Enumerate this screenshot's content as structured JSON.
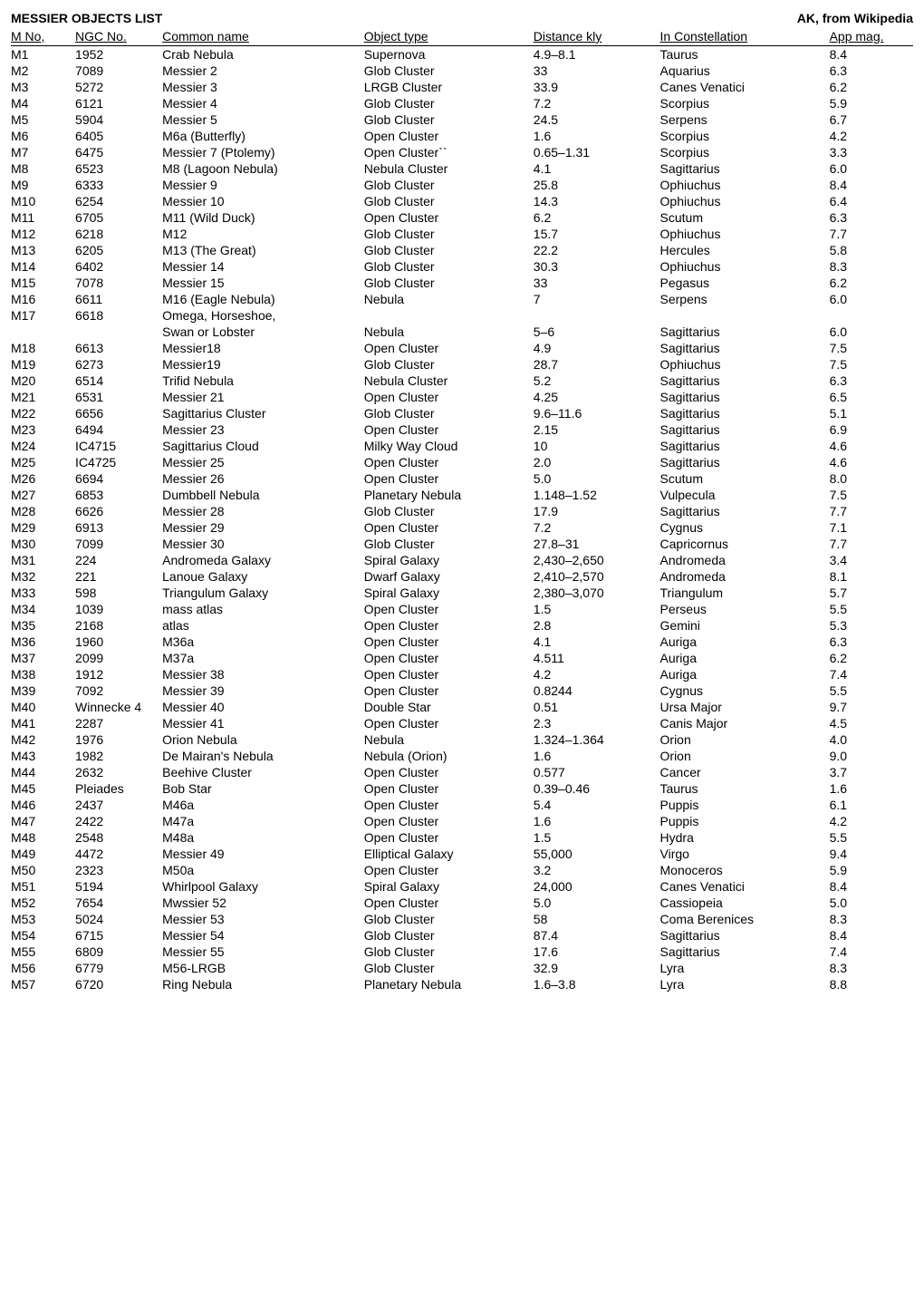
{
  "title_left": "MESSIER OBJECTS LIST",
  "title_right": "AK, from Wikipedia",
  "columns": [
    "M No,",
    "NGC No.",
    "Common name",
    "Object type",
    "Distance kly",
    "In Constellation",
    "App mag."
  ],
  "rows": [
    [
      "M1",
      "1952",
      "Crab Nebula",
      "Supernova",
      "4.9–8.1",
      "Taurus",
      "8.4"
    ],
    [
      "M2",
      "7089",
      "Messier 2",
      "Glob Cluster",
      "33",
      "Aquarius",
      "6.3"
    ],
    [
      "M3",
      "5272",
      "Messier 3",
      "LRGB Cluster",
      "33.9",
      "Canes Venatici",
      "6.2"
    ],
    [
      "M4",
      "6121",
      "Messier 4",
      "Glob Cluster",
      "7.2",
      "Scorpius",
      "5.9"
    ],
    [
      "M5",
      "5904",
      "Messier 5",
      "Glob Cluster",
      "24.5",
      "Serpens",
      "6.7"
    ],
    [
      "M6",
      "6405",
      "M6a (Butterfly)",
      "Open Cluster",
      "1.6",
      "Scorpius",
      "4.2"
    ],
    [
      "M7",
      "6475",
      "Messier 7 (Ptolemy)",
      "Open Cluster``",
      "0.65–1.31",
      "Scorpius",
      "3.3"
    ],
    [
      "M8",
      "6523",
      "M8 (Lagoon Nebula)",
      "Nebula Cluster",
      "4.1",
      "Sagittarius",
      "6.0"
    ],
    [
      "M9",
      "6333",
      "Messier 9",
      "Glob Cluster",
      "25.8",
      "Ophiuchus",
      "8.4"
    ],
    [
      "M10",
      "6254",
      "Messier 10",
      "Glob Cluster",
      "14.3",
      "Ophiuchus",
      "6.4"
    ],
    [
      "M11",
      "6705",
      "M11  (Wild Duck)",
      "Open Cluster",
      "6.2",
      "Scutum",
      "6.3"
    ],
    [
      "M12",
      "6218",
      "M12",
      "Glob Cluster",
      "15.7",
      "Ophiuchus",
      "7.7"
    ],
    [
      "M13",
      "6205",
      "M13 (The Great)",
      "Glob Cluster",
      "22.2",
      "Hercules",
      "5.8"
    ],
    [
      "M14",
      "6402",
      "Messier 14",
      "Glob Cluster",
      "30.3",
      "Ophiuchus",
      "8.3"
    ],
    [
      "M15",
      "7078",
      "Messier 15",
      "Glob Cluster",
      "33",
      "Pegasus",
      "6.2"
    ],
    [
      "M16",
      "6611",
      "M16 (Eagle Nebula)",
      "Nebula",
      "7",
      "Serpens",
      "6.0"
    ],
    [
      "M17",
      "6618",
      "Omega, Horseshoe,",
      "",
      "",
      "",
      ""
    ],
    [
      "",
      "",
      "Swan or Lobster",
      "Nebula",
      "5–6",
      "Sagittarius",
      "6.0"
    ],
    [
      "M18",
      "6613",
      "Messier18",
      "Open Cluster",
      "4.9",
      "Sagittarius",
      "7.5"
    ],
    [
      "M19",
      "6273",
      "Messier19",
      "Glob Cluster",
      "28.7",
      "Ophiuchus",
      "7.5"
    ],
    [
      "M20",
      "6514",
      "Trifid Nebula",
      "Nebula Cluster",
      "5.2",
      "Sagittarius",
      "6.3"
    ],
    [
      "M21",
      "6531",
      "Messier 21",
      "Open Cluster",
      "4.25",
      "Sagittarius",
      "6.5"
    ],
    [
      "M22",
      "6656",
      "Sagittarius Cluster",
      "Glob Cluster",
      "9.6–11.6",
      "Sagittarius",
      "5.1"
    ],
    [
      "M23",
      "6494",
      "Messier 23",
      "Open Cluster",
      "2.15",
      "Sagittarius",
      "6.9"
    ],
    [
      "M24",
      "IC4715",
      "Sagittarius Cloud",
      "Milky Way Cloud",
      "10",
      "Sagittarius",
      "4.6"
    ],
    [
      "M25",
      "IC4725",
      "Messier 25",
      "Open Cluster",
      "2.0",
      "Sagittarius",
      "4.6"
    ],
    [
      "M26",
      "6694",
      "Messier 26",
      "Open Cluster",
      "5.0",
      "Scutum",
      "8.0"
    ],
    [
      "M27",
      "6853",
      "Dumbbell Nebula",
      "Planetary Nebula",
      "1.148–1.52",
      "Vulpecula",
      "7.5"
    ],
    [
      "M28",
      "6626",
      "Messier 28",
      "Glob Cluster",
      "17.9",
      "Sagittarius",
      "7.7"
    ],
    [
      "M29",
      "6913",
      "Messier 29",
      "Open Cluster",
      "7.2",
      "Cygnus",
      "7.1"
    ],
    [
      "M30",
      "7099",
      "Messier 30",
      "Glob Cluster",
      "27.8–31",
      "Capricornus",
      "7.7"
    ],
    [
      "M31",
      "224",
      "Andromeda Galaxy",
      "Spiral Galaxy",
      "2,430–2,650",
      "Andromeda",
      "3.4"
    ],
    [
      "M32",
      "221",
      "Lanoue Galaxy",
      "Dwarf Galaxy",
      "2,410–2,570",
      "Andromeda",
      "8.1"
    ],
    [
      "M33",
      "598",
      "Triangulum Galaxy",
      "Spiral Galaxy",
      "2,380–3,070",
      "Triangulum",
      "5.7"
    ],
    [
      "M34",
      "1039",
      "mass atlas",
      "Open Cluster",
      "1.5",
      "Perseus",
      "5.5"
    ],
    [
      "M35",
      "2168",
      "atlas",
      "Open Cluster",
      "2.8",
      "Gemini",
      "5.3"
    ],
    [
      "M36",
      "1960",
      "M36a",
      "Open Cluster",
      "4.1",
      "Auriga",
      "6.3"
    ],
    [
      "M37",
      "2099",
      "M37a",
      "Open Cluster",
      "4.511",
      "Auriga",
      "6.2"
    ],
    [
      "M38",
      "1912",
      "Messier 38",
      "Open Cluster",
      "4.2",
      "Auriga",
      "7.4"
    ],
    [
      "M39",
      "7092",
      "Messier  39",
      "Open Cluster",
      "0.8244",
      "Cygnus",
      "5.5"
    ],
    [
      "M40",
      "Winnecke 4",
      "Messier 40",
      "Double Star",
      "0.51",
      "Ursa Major",
      "9.7"
    ],
    [
      "M41",
      "2287",
      "Messier 41",
      "Open Cluster",
      "2.3",
      "Canis Major",
      "4.5"
    ],
    [
      "M42",
      "1976",
      "Orion Nebula",
      "Nebula",
      "1.324–1.364",
      "Orion",
      "4.0"
    ],
    [
      "M43",
      "1982",
      "De Mairan's Nebula",
      "Nebula (Orion)",
      "1.6",
      "Orion",
      "9.0"
    ],
    [
      "M44",
      "2632",
      "Beehive Cluster",
      "Open Cluster",
      "0.577",
      "Cancer",
      "3.7"
    ],
    [
      "M45",
      "Pleiades",
      "Bob Star",
      "Open Cluster",
      "0.39–0.46",
      "Taurus",
      "1.6"
    ],
    [
      "M46",
      "2437",
      "M46a",
      "Open Cluster",
      "5.4",
      "Puppis",
      "6.1"
    ],
    [
      "M47",
      "2422",
      "M47a",
      "Open Cluster",
      "1.6",
      "Puppis",
      "4.2"
    ],
    [
      "M48",
      "2548",
      "M48a",
      "Open Cluster",
      "1.5",
      "Hydra",
      "5.5"
    ],
    [
      "M49",
      "4472",
      "Messier 49",
      "Elliptical Galaxy",
      "55,000",
      "Virgo",
      "9.4"
    ],
    [
      "M50",
      "2323",
      "M50a",
      "Open Cluster",
      "3.2",
      "Monoceros",
      "5.9"
    ],
    [
      "M51",
      "5194",
      "Whirlpool Galaxy",
      "Spiral Galaxy",
      "24,000",
      "Canes Venatici",
      "8.4"
    ],
    [
      "M52",
      "7654",
      "Mwssier 52",
      "Open Cluster",
      "5.0",
      "Cassiopeia",
      "5.0"
    ],
    [
      "M53",
      "5024",
      "Messier 53",
      "Glob Cluster",
      "58",
      "Coma Berenices",
      "8.3"
    ],
    [
      "M54",
      "6715",
      "Messier 54",
      "Glob Cluster",
      "87.4",
      "Sagittarius",
      "8.4"
    ],
    [
      "M55",
      "6809",
      "Messier 55",
      "Glob Cluster",
      "17.6",
      "Sagittarius",
      "7.4"
    ],
    [
      "M56",
      "6779",
      "M56-LRGB",
      "Glob Cluster",
      "32.9",
      "Lyra",
      "8.3"
    ],
    [
      "M57",
      "6720",
      "Ring Nebula",
      "Planetary Nebula",
      "1.6–3.8",
      "Lyra",
      "8.8"
    ]
  ]
}
